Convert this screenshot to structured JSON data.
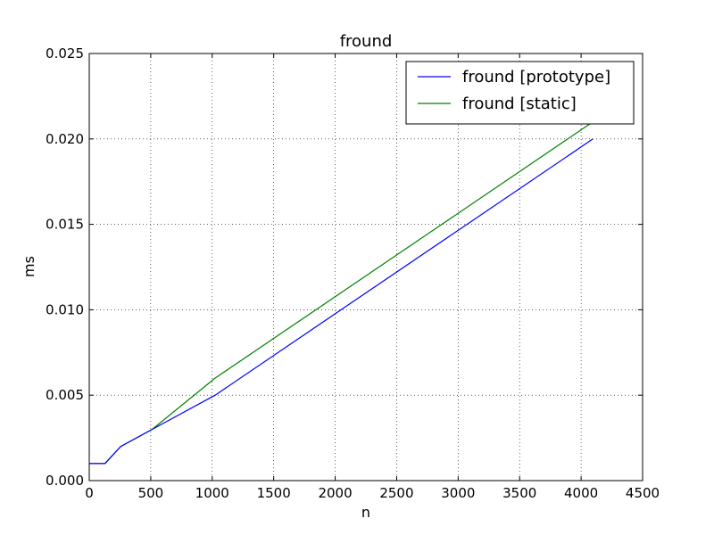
{
  "chart_data": {
    "type": "line",
    "title": "fround",
    "xlabel": "n",
    "ylabel": "ms",
    "xlim": [
      0,
      4500
    ],
    "ylim": [
      0,
      0.025
    ],
    "xticks": [
      0,
      500,
      1000,
      1500,
      2000,
      2500,
      3000,
      3500,
      4000,
      4500
    ],
    "xtick_labels": [
      "0",
      "500",
      "1000",
      "1500",
      "2000",
      "2500",
      "3000",
      "3500",
      "4000",
      "4500"
    ],
    "yticks": [
      0,
      0.005,
      0.01,
      0.015,
      0.02,
      0.025
    ],
    "ytick_labels": [
      "0.000",
      "0.005",
      "0.010",
      "0.015",
      "0.020",
      "0.025"
    ],
    "grid": true,
    "legend_position": "top-right",
    "series": [
      {
        "name": "fround [prototype]",
        "color": "#0000ff",
        "x": [
          0,
          128,
          256,
          512,
          1024,
          2048,
          4096
        ],
        "y": [
          0.001,
          0.001,
          0.002,
          0.003,
          0.005,
          0.01,
          0.02
        ]
      },
      {
        "name": "fround [static]",
        "color": "#008000",
        "x": [
          0,
          128,
          256,
          512,
          1024,
          2048,
          4096
        ],
        "y": [
          0.001,
          0.001,
          0.002,
          0.003,
          0.006,
          0.011,
          0.021
        ]
      }
    ]
  }
}
